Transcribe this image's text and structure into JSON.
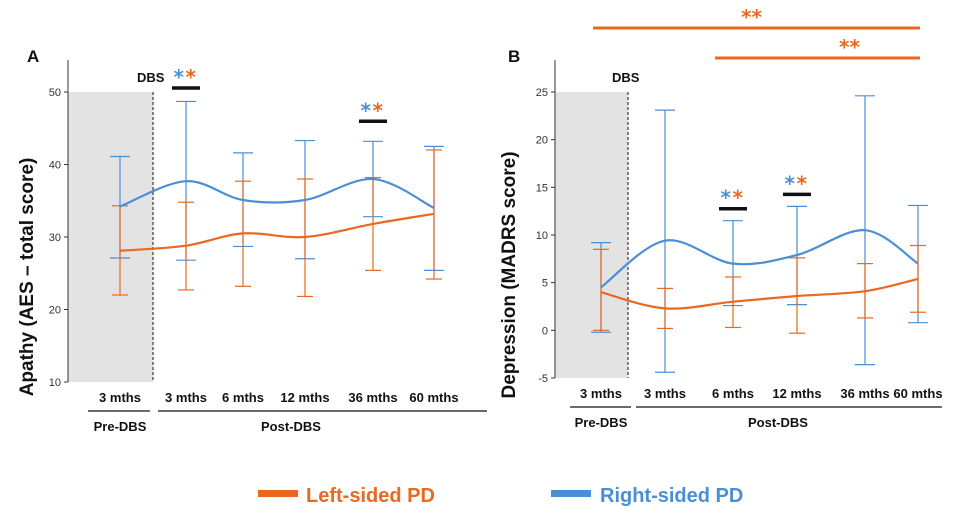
{
  "colors": {
    "left": "#E8691F",
    "right": "#4A8FD6",
    "shade": "#E3E3E3",
    "axis": "#333333"
  },
  "legend": {
    "left_label": "Left-sided PD",
    "right_label": "Right-sided PD"
  },
  "chart_data": [
    {
      "panel": "A",
      "type": "line",
      "ylabel": "Apathy (AES – total score)",
      "ylim": [
        10,
        50
      ],
      "yticks": [
        10,
        20,
        30,
        40,
        50
      ],
      "x_labels": [
        "3 mths",
        "3 mths",
        "6 mths",
        "12 mths",
        "36 mths",
        "60 mths"
      ],
      "group_labels": [
        "Pre-DBS",
        "Post-DBS"
      ],
      "dbs_marker": "DBS",
      "series": [
        {
          "name": "Left-sided PD",
          "values": [
            28.1,
            28.8,
            30.5,
            30.0,
            31.8,
            33.2
          ],
          "err_low": [
            22.0,
            22.7,
            23.2,
            21.8,
            25.4,
            24.2
          ],
          "err_high": [
            34.3,
            34.8,
            37.7,
            38.0,
            38.2,
            42.0
          ]
        },
        {
          "name": "Right-sided PD",
          "values": [
            34.2,
            37.7,
            35.1,
            35.1,
            38.0,
            34.0
          ],
          "err_low": [
            27.1,
            26.8,
            28.7,
            27.0,
            32.8,
            25.4
          ],
          "err_high": [
            41.1,
            48.7,
            41.6,
            43.3,
            43.2,
            42.5
          ]
        }
      ],
      "significance": [
        {
          "index": 1,
          "stars": [
            "*",
            "*"
          ]
        },
        {
          "index": 4,
          "stars": [
            "*",
            "*"
          ]
        }
      ],
      "brackets": []
    },
    {
      "panel": "B",
      "type": "line",
      "ylabel": "Depression (MADRS score)",
      "ylim": [
        -5,
        25
      ],
      "yticks": [
        -5,
        0,
        5,
        10,
        15,
        20,
        25
      ],
      "x_labels": [
        "3 mths",
        "3 mths",
        "6 mths",
        "12 mths",
        "36 mths",
        "60 mths"
      ],
      "group_labels": [
        "Pre-DBS",
        "Post-DBS"
      ],
      "dbs_marker": "DBS",
      "series": [
        {
          "name": "Left-sided PD",
          "values": [
            4.0,
            2.3,
            3.0,
            3.6,
            4.1,
            5.4
          ],
          "err_low": [
            0.0,
            0.2,
            0.3,
            -0.3,
            1.3,
            1.9
          ],
          "err_high": [
            8.5,
            4.4,
            5.6,
            7.6,
            7.0,
            8.9
          ]
        },
        {
          "name": "Right-sided PD",
          "values": [
            4.5,
            9.4,
            7.0,
            7.9,
            10.5,
            7.0
          ],
          "err_low": [
            -0.2,
            -4.4,
            2.6,
            2.7,
            -3.6,
            0.8
          ],
          "err_high": [
            9.2,
            23.1,
            11.5,
            13.0,
            24.6,
            13.1
          ]
        }
      ],
      "significance": [
        {
          "index": 2,
          "stars": [
            "*",
            "*"
          ]
        },
        {
          "index": 3,
          "stars": [
            "*",
            "*"
          ]
        }
      ],
      "brackets": [
        {
          "from": 1,
          "to": 5,
          "stars": "**"
        },
        {
          "from": 2,
          "to": 5,
          "stars": "**"
        }
      ]
    }
  ]
}
